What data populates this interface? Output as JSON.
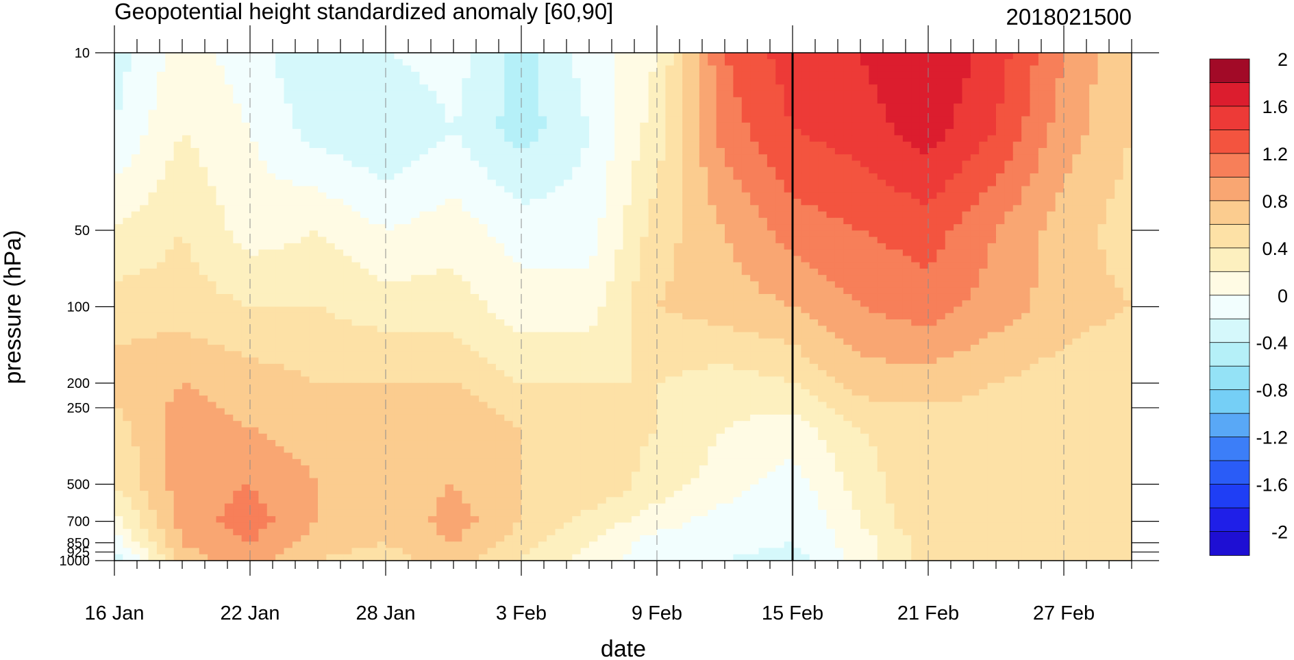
{
  "chart_data": {
    "type": "heatmap",
    "title": "Geopotential height standardized anomaly [60,90]",
    "init_label": "2018021500",
    "xlabel": "date",
    "ylabel": "pressure (hPa)",
    "x_start_date": "2018-01-16",
    "x_tick_labels": [
      "16 Jan",
      "22 Jan",
      "28 Jan",
      "3 Feb",
      "9 Feb",
      "15 Feb",
      "21 Feb",
      "27 Feb"
    ],
    "x_tick_days": [
      0,
      6,
      12,
      18,
      24,
      30,
      36,
      42
    ],
    "x_range_days": [
      0,
      45
    ],
    "y_scale": "log",
    "y_inverted": true,
    "y_range_hPa": [
      1000,
      10
    ],
    "y_tick_labels": [
      "10",
      "50",
      "100",
      "200",
      "250",
      "500",
      "700",
      "850",
      "925",
      "1000"
    ],
    "y_tick_values": [
      10,
      50,
      100,
      200,
      250,
      500,
      700,
      850,
      925,
      1000
    ],
    "vertical_line_day": 30,
    "colorbar": {
      "levels": [
        -2,
        -1.8,
        -1.6,
        -1.4,
        -1.2,
        -1.0,
        -0.8,
        -0.6,
        -0.4,
        -0.2,
        0,
        0.2,
        0.4,
        0.6,
        0.8,
        1.0,
        1.2,
        1.4,
        1.6,
        1.8,
        2.0
      ],
      "labels": [
        "2",
        "1.6",
        "1.2",
        "0.8",
        "0.4",
        "0",
        "-0.4",
        "-0.8",
        "-1.2",
        "-1.6",
        "-2"
      ],
      "label_values": [
        2,
        1.6,
        1.2,
        0.8,
        0.4,
        0,
        -0.4,
        -0.8,
        -1.2,
        -1.6,
        -2
      ],
      "colors": [
        "#1e0fd3",
        "#1f1fe8",
        "#1f3ef5",
        "#2a5cf7",
        "#3c7ef8",
        "#59a8f6",
        "#75cff6",
        "#94e2f6",
        "#b5f0f8",
        "#d5f8fb",
        "#f2fefe",
        "#fffbe4",
        "#fdf0bf",
        "#fde1a6",
        "#fbcc8f",
        "#f9a672",
        "#f77f59",
        "#f3543f",
        "#ed3a37",
        "#dc1d2e",
        "#a20a27"
      ]
    },
    "x": [
      0,
      3,
      6,
      9,
      12,
      15,
      18,
      21,
      24,
      27,
      30,
      33,
      36,
      39,
      42,
      45
    ],
    "y": [
      10,
      20,
      50,
      100,
      200,
      300,
      500,
      700,
      850,
      1000
    ],
    "values": [
      [
        -0.3,
        0.1,
        -0.1,
        -0.4,
        -0.2,
        -0.1,
        -0.5,
        -0.1,
        0.2,
        1.2,
        1.5,
        1.6,
        1.8,
        1.5,
        1.0,
        0.6
      ],
      [
        -0.2,
        0.2,
        0.0,
        -0.3,
        -0.4,
        -0.2,
        -0.5,
        -0.2,
        0.3,
        1.1,
        1.4,
        1.5,
        1.7,
        1.4,
        0.9,
        0.6
      ],
      [
        0.2,
        0.4,
        0.1,
        0.2,
        0.0,
        0.1,
        -0.1,
        -0.1,
        0.5,
        0.8,
        1.1,
        1.2,
        1.3,
        1.0,
        0.7,
        0.5
      ],
      [
        0.5,
        0.5,
        0.4,
        0.4,
        0.3,
        0.3,
        0.1,
        0.1,
        0.6,
        0.7,
        0.8,
        1.0,
        1.1,
        0.9,
        0.7,
        0.6
      ],
      [
        0.7,
        0.8,
        0.7,
        0.6,
        0.6,
        0.6,
        0.4,
        0.4,
        0.4,
        0.3,
        0.4,
        0.7,
        0.7,
        0.6,
        0.5,
        0.4
      ],
      [
        0.5,
        0.9,
        0.8,
        0.7,
        0.7,
        0.8,
        0.6,
        0.5,
        0.4,
        0.2,
        0.1,
        0.4,
        0.5,
        0.5,
        0.4,
        0.4
      ],
      [
        0.4,
        0.9,
        1.0,
        0.8,
        0.7,
        0.8,
        0.6,
        0.6,
        0.3,
        0.1,
        -0.1,
        0.3,
        0.6,
        0.5,
        0.6,
        0.5
      ],
      [
        0.1,
        0.9,
        1.1,
        0.8,
        0.6,
        0.9,
        0.6,
        0.3,
        0.1,
        -0.1,
        -0.2,
        0.2,
        0.6,
        0.4,
        0.6,
        0.6
      ],
      [
        -0.1,
        0.8,
        1.0,
        0.7,
        0.6,
        0.8,
        0.5,
        0.2,
        -0.1,
        -0.1,
        -0.2,
        0.1,
        0.5,
        0.4,
        0.5,
        0.5
      ],
      [
        -0.4,
        0.7,
        0.9,
        0.6,
        0.5,
        0.7,
        0.4,
        0.1,
        -0.1,
        -0.2,
        -0.3,
        0.1,
        0.5,
        0.4,
        0.5,
        0.5
      ]
    ]
  }
}
